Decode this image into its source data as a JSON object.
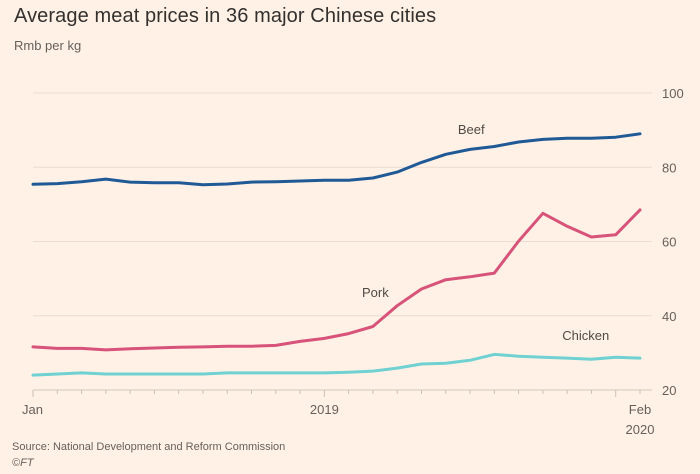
{
  "chart_data": {
    "type": "line",
    "title": "Average meat prices in 36 major Chinese cities",
    "ylabel": "Rmb per kg",
    "xlabel": "",
    "ylim": [
      20,
      100
    ],
    "yticks": [
      20,
      40,
      60,
      80,
      100
    ],
    "ytick_labels": [
      "20",
      "40",
      "60",
      "80",
      "100"
    ],
    "grid": true,
    "y_axis_side": "right",
    "x": [
      "2018-01",
      "2018-02",
      "2018-03",
      "2018-04",
      "2018-05",
      "2018-06",
      "2018-07",
      "2018-08",
      "2018-09",
      "2018-10",
      "2018-11",
      "2018-12",
      "2019-01",
      "2019-02",
      "2019-03",
      "2019-04",
      "2019-05",
      "2019-06",
      "2019-07",
      "2019-08",
      "2019-09",
      "2019-10",
      "2019-11",
      "2019-12",
      "2020-01",
      "2020-02"
    ],
    "xtick_labels": [
      {
        "label": "Jan",
        "at": "2018-01"
      },
      {
        "label": "2019",
        "at": "2019-01"
      },
      {
        "label": "Feb",
        "sublabel": "2020",
        "at": "2020-02"
      }
    ],
    "series": [
      {
        "name": "Beef",
        "color": "#1f5a96",
        "values": [
          75.4,
          75.6,
          76.1,
          76.8,
          76.0,
          75.8,
          75.8,
          75.3,
          75.5,
          76.0,
          76.1,
          76.3,
          76.5,
          76.5,
          77.1,
          78.7,
          81.3,
          83.5,
          84.8,
          85.6,
          86.8,
          87.5,
          87.8,
          87.8,
          88.1,
          89.0
        ]
      },
      {
        "name": "Pork",
        "color": "#d7537a",
        "values": [
          31.6,
          31.2,
          31.2,
          30.8,
          31.1,
          31.3,
          31.5,
          31.6,
          31.8,
          31.8,
          32.0,
          33.1,
          33.9,
          35.2,
          37.1,
          42.7,
          47.2,
          49.7,
          50.5,
          51.5,
          60.1,
          67.6,
          64.1,
          61.2,
          61.8,
          68.5
        ]
      },
      {
        "name": "Chicken",
        "color": "#6fd1d1",
        "values": [
          24.0,
          24.3,
          24.6,
          24.3,
          24.3,
          24.3,
          24.3,
          24.3,
          24.6,
          24.6,
          24.6,
          24.6,
          24.6,
          24.8,
          25.1,
          25.9,
          27.0,
          27.2,
          28.0,
          29.6,
          29.1,
          28.8,
          28.6,
          28.3,
          28.8,
          28.6
        ]
      }
    ]
  },
  "footer": {
    "source": "Source: National Development and Reform Commission",
    "copyright": "©FT"
  }
}
